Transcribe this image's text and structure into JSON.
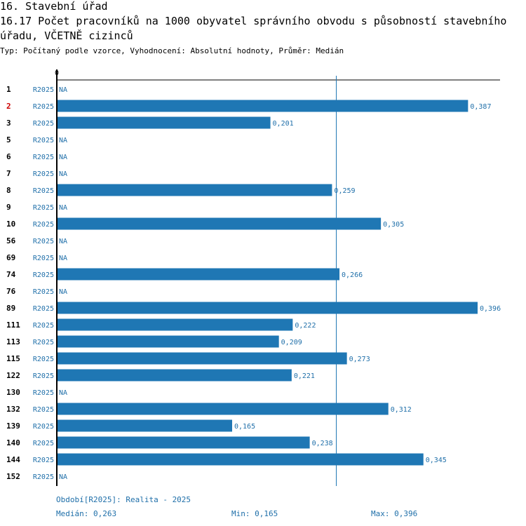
{
  "header": {
    "title": "16. Stavební úřad",
    "subtitle": "16.17 Počet pracovníků na 1000 obyvatel správního obvodu s působností stavebního úřadu, VČETNĚ cizinců",
    "type_line": "Typ: Počítaný podle vzorce, Vyhodnocení: Absolutní hodnoty, Průměr: Medián"
  },
  "colors": {
    "bar": "#1f77b4",
    "text_blue": "#1f6fa9",
    "highlight": "#cc0000",
    "axis": "#000000"
  },
  "chart_data": {
    "type": "bar",
    "orientation": "horizontal",
    "x_axis_label_zero": "0",
    "xlim": [
      0,
      0.396
    ],
    "median_line": 0.263,
    "series_label": "R2025",
    "na_label": "NA",
    "highlighted_category": "2",
    "categories": [
      "1",
      "2",
      "3",
      "5",
      "6",
      "7",
      "8",
      "9",
      "10",
      "56",
      "69",
      "74",
      "76",
      "89",
      "111",
      "113",
      "115",
      "122",
      "130",
      "132",
      "139",
      "140",
      "144",
      "152"
    ],
    "values": [
      null,
      0.387,
      0.201,
      null,
      null,
      null,
      0.259,
      null,
      0.305,
      null,
      null,
      0.266,
      null,
      0.396,
      0.222,
      0.209,
      0.273,
      0.221,
      null,
      0.312,
      0.165,
      0.238,
      0.345,
      null
    ],
    "value_labels": [
      "NA",
      "0,387",
      "0,201",
      "NA",
      "NA",
      "NA",
      "0,259",
      "NA",
      "0,305",
      "NA",
      "NA",
      "0,266",
      "NA",
      "0,396",
      "0,222",
      "0,209",
      "0,273",
      "0,221",
      "NA",
      "0,312",
      "0,165",
      "0,238",
      "0,345",
      "NA"
    ]
  },
  "footer": {
    "period": "Období[R2025]: Realita - 2025",
    "median": "Medián: 0,263",
    "min": "Min: 0,165",
    "max": "Max: 0,396"
  }
}
